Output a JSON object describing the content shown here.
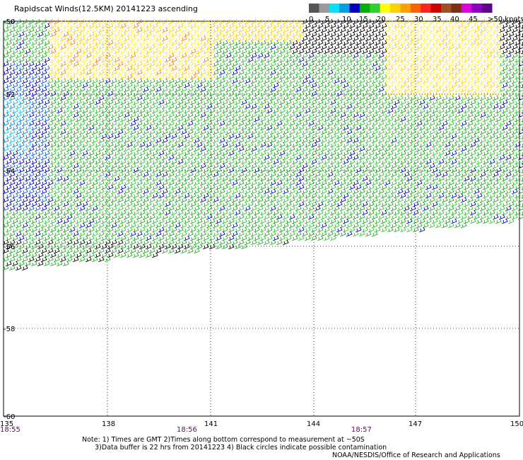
{
  "title": "Rapidscat Winds(12.5KM) 20141223 ascending",
  "legend": {
    "labels": [
      "0",
      "5",
      "10",
      "15",
      "20",
      "25",
      "30",
      "35",
      "40",
      "45",
      ">50 knots"
    ],
    "colors": [
      "#555555",
      "#9a9a9a",
      "#00e0ff",
      "#00a0e0",
      "#0000c0",
      "#00b000",
      "#30d030",
      "#ffff00",
      "#ffd000",
      "#ffa000",
      "#ff6000",
      "#ff2020",
      "#d00000",
      "#a05020",
      "#7a3010",
      "#e000e0",
      "#9000c0",
      "#600090"
    ]
  },
  "axes": {
    "lat_labels": [
      "-50",
      "-52",
      "-54",
      "-56",
      "-58",
      "-60"
    ],
    "lon_labels": [
      "135",
      "138",
      "141",
      "144",
      "147",
      "150"
    ]
  },
  "times": [
    "18:55",
    "18:56",
    "18:57"
  ],
  "notes": [
    "Note: 1) Times are GMT 2)Times along bottom correspond to measurement at ~50S",
    "3)Data buffer is 22 hrs from 20141223 4) Black circles indicate possible contamination"
  ],
  "credit": "NOAA/NESDIS/Office of Research and Applications"
}
